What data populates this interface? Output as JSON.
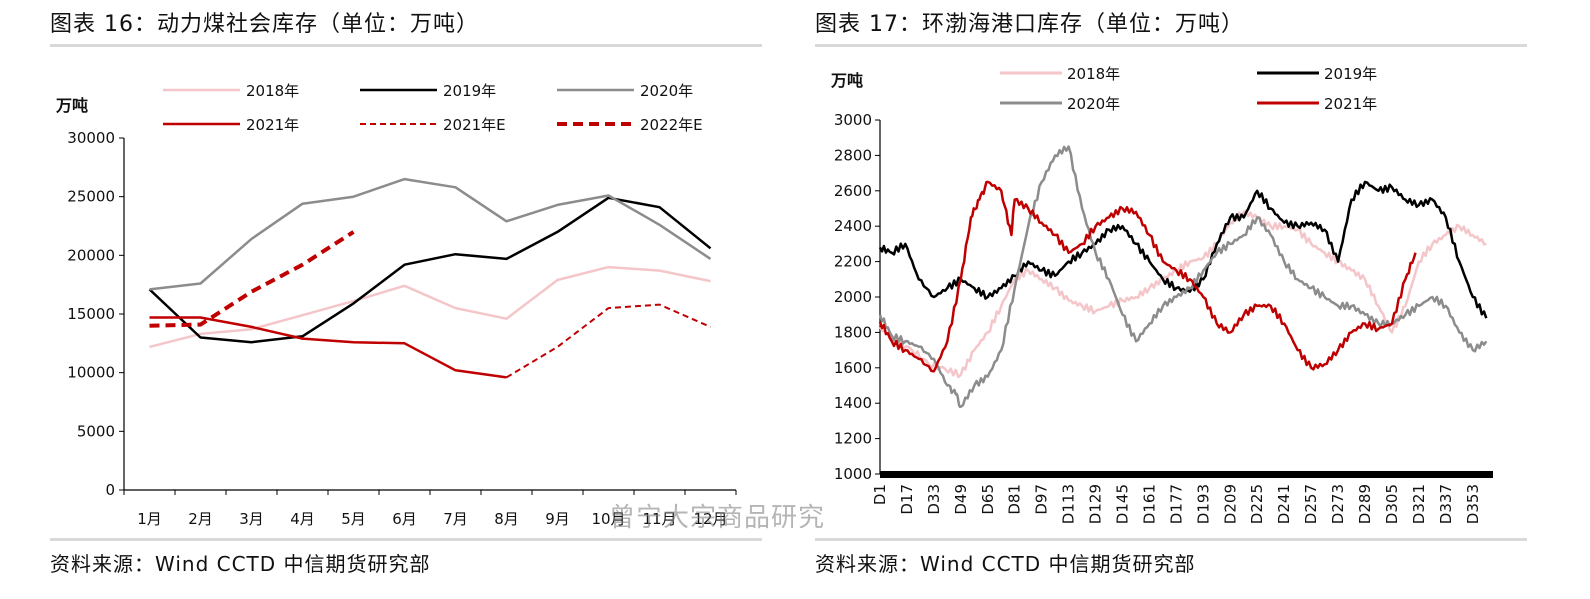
{
  "left": {
    "title": "图表 16：动力煤社会库存（单位：万吨）",
    "source": "资料来源：Wind CCTD 中信期货研究部",
    "chart_data": {
      "type": "line",
      "ylabel": "万吨",
      "ylim": [
        0,
        30000
      ],
      "yticks": [
        0,
        5000,
        10000,
        15000,
        20000,
        25000,
        30000
      ],
      "categories": [
        "1月",
        "2月",
        "3月",
        "4月",
        "5月",
        "6月",
        "7月",
        "8月",
        "9月",
        "10月",
        "11月",
        "12月"
      ],
      "legend_position": "top",
      "series": [
        {
          "name": "2018年",
          "color": "#f4c6c9",
          "style": "solid",
          "width": 2.5,
          "values": [
            12200,
            13300,
            13700,
            14900,
            16100,
            17400,
            15500,
            14600,
            17900,
            19000,
            18700,
            17800
          ]
        },
        {
          "name": "2019年",
          "color": "#000000",
          "style": "solid",
          "width": 2.5,
          "values": [
            17100,
            13000,
            12600,
            13100,
            15900,
            19200,
            20100,
            19700,
            22000,
            24900,
            24100,
            20600
          ]
        },
        {
          "name": "2020年",
          "color": "#8c8c8c",
          "style": "solid",
          "width": 2.5,
          "values": [
            17100,
            17600,
            21400,
            24400,
            25000,
            26500,
            25800,
            22900,
            24300,
            25100,
            22600,
            19700
          ]
        },
        {
          "name": "2021年",
          "color": "#c00000",
          "style": "solid",
          "width": 2.5,
          "values": [
            14700,
            14700,
            13900,
            12900,
            12600,
            12500,
            10200,
            9600,
            null,
            null,
            null,
            null
          ]
        },
        {
          "name": "2021年E",
          "color": "#c00000",
          "style": "dash",
          "width": 2,
          "values": [
            null,
            null,
            null,
            null,
            null,
            null,
            null,
            9600,
            12200,
            15500,
            15800,
            13900
          ]
        },
        {
          "name": "2022年E",
          "color": "#c00000",
          "style": "dashbold",
          "width": 4,
          "values": [
            14000,
            14100,
            16900,
            19200,
            22000,
            null,
            null,
            null,
            null,
            null,
            null,
            null
          ]
        }
      ]
    }
  },
  "right": {
    "title": "图表 17：环渤海港口库存（单位：万吨）",
    "source": "资料来源：Wind CCTD 中信期货研究部",
    "watermark": "曾宁大宗商品研究",
    "chart_data": {
      "type": "line",
      "ylabel": "万吨",
      "ylim": [
        1000,
        3000
      ],
      "yticks": [
        1000,
        1200,
        1400,
        1600,
        1800,
        2000,
        2200,
        2400,
        2600,
        2800,
        3000
      ],
      "x_ticks": [
        "D1",
        "D17",
        "D33",
        "D49",
        "D65",
        "D81",
        "D97",
        "D113",
        "D129",
        "D145",
        "D161",
        "D177",
        "D193",
        "D209",
        "D225",
        "D241",
        "D257",
        "D273",
        "D289",
        "D305",
        "D321",
        "D337",
        "D353"
      ],
      "x_range": [
        1,
        365
      ],
      "legend_position": "top",
      "series": [
        {
          "name": "2018年",
          "color": "#f4c6c9",
          "width": 2.5,
          "points": [
            [
              1,
              1830
            ],
            [
              10,
              1750
            ],
            [
              20,
              1700
            ],
            [
              30,
              1620
            ],
            [
              40,
              1590
            ],
            [
              49,
              1560
            ],
            [
              57,
              1700
            ],
            [
              65,
              1800
            ],
            [
              73,
              1950
            ],
            [
              81,
              2100
            ],
            [
              89,
              2150
            ],
            [
              97,
              2100
            ],
            [
              105,
              2050
            ],
            [
              113,
              1980
            ],
            [
              121,
              1950
            ],
            [
              129,
              1920
            ],
            [
              137,
              1950
            ],
            [
              145,
              1980
            ],
            [
              153,
              2000
            ],
            [
              161,
              2050
            ],
            [
              169,
              2100
            ],
            [
              177,
              2150
            ],
            [
              185,
              2200
            ],
            [
              193,
              2220
            ],
            [
              201,
              2300
            ],
            [
              209,
              2420
            ],
            [
              217,
              2480
            ],
            [
              225,
              2450
            ],
            [
              233,
              2400
            ],
            [
              241,
              2400
            ],
            [
              249,
              2380
            ],
            [
              257,
              2300
            ],
            [
              265,
              2250
            ],
            [
              273,
              2200
            ],
            [
              281,
              2150
            ],
            [
              289,
              2100
            ],
            [
              297,
              1950
            ],
            [
              305,
              1800
            ],
            [
              313,
              1950
            ],
            [
              321,
              2200
            ],
            [
              329,
              2300
            ],
            [
              337,
              2350
            ],
            [
              345,
              2400
            ],
            [
              353,
              2350
            ],
            [
              361,
              2300
            ]
          ]
        },
        {
          "name": "2019年",
          "color": "#000000",
          "width": 2.5,
          "points": [
            [
              1,
              2280
            ],
            [
              8,
              2250
            ],
            [
              16,
              2300
            ],
            [
              24,
              2100
            ],
            [
              33,
              2000
            ],
            [
              41,
              2050
            ],
            [
              49,
              2100
            ],
            [
              57,
              2050
            ],
            [
              65,
              2000
            ],
            [
              73,
              2050
            ],
            [
              81,
              2120
            ],
            [
              89,
              2200
            ],
            [
              97,
              2150
            ],
            [
              105,
              2120
            ],
            [
              113,
              2200
            ],
            [
              121,
              2250
            ],
            [
              129,
              2300
            ],
            [
              137,
              2380
            ],
            [
              145,
              2400
            ],
            [
              153,
              2300
            ],
            [
              161,
              2200
            ],
            [
              169,
              2100
            ],
            [
              177,
              2050
            ],
            [
              185,
              2030
            ],
            [
              193,
              2100
            ],
            [
              201,
              2300
            ],
            [
              209,
              2450
            ],
            [
              217,
              2450
            ],
            [
              225,
              2600
            ],
            [
              233,
              2500
            ],
            [
              241,
              2420
            ],
            [
              249,
              2400
            ],
            [
              257,
              2420
            ],
            [
              265,
              2380
            ],
            [
              273,
              2200
            ],
            [
              281,
              2550
            ],
            [
              289,
              2650
            ],
            [
              297,
              2600
            ],
            [
              305,
              2620
            ],
            [
              313,
              2550
            ],
            [
              321,
              2520
            ],
            [
              329,
              2550
            ],
            [
              337,
              2450
            ],
            [
              345,
              2200
            ],
            [
              353,
              2000
            ],
            [
              361,
              1880
            ]
          ]
        },
        {
          "name": "2020年",
          "color": "#8c8c8c",
          "width": 2.5,
          "points": [
            [
              1,
              1900
            ],
            [
              8,
              1780
            ],
            [
              16,
              1750
            ],
            [
              24,
              1720
            ],
            [
              33,
              1650
            ],
            [
              41,
              1500
            ],
            [
              46,
              1450
            ],
            [
              49,
              1380
            ],
            [
              57,
              1500
            ],
            [
              65,
              1550
            ],
            [
              73,
              1700
            ],
            [
              81,
              2050
            ],
            [
              89,
              2400
            ],
            [
              97,
              2650
            ],
            [
              105,
              2800
            ],
            [
              113,
              2850
            ],
            [
              121,
              2500
            ],
            [
              129,
              2250
            ],
            [
              137,
              2100
            ],
            [
              145,
              1900
            ],
            [
              153,
              1750
            ],
            [
              161,
              1850
            ],
            [
              169,
              1950
            ],
            [
              177,
              2000
            ],
            [
              185,
              2050
            ],
            [
              193,
              2150
            ],
            [
              201,
              2250
            ],
            [
              209,
              2300
            ],
            [
              217,
              2350
            ],
            [
              225,
              2450
            ],
            [
              233,
              2350
            ],
            [
              241,
              2200
            ],
            [
              249,
              2100
            ],
            [
              257,
              2050
            ],
            [
              265,
              2000
            ],
            [
              273,
              1950
            ],
            [
              281,
              1950
            ],
            [
              289,
              1900
            ],
            [
              297,
              1850
            ],
            [
              305,
              1850
            ],
            [
              313,
              1900
            ],
            [
              321,
              1950
            ],
            [
              329,
              2000
            ],
            [
              337,
              1950
            ],
            [
              345,
              1800
            ],
            [
              353,
              1700
            ],
            [
              361,
              1750
            ]
          ]
        },
        {
          "name": "2021年",
          "color": "#c00000",
          "width": 2.5,
          "points": [
            [
              1,
              1860
            ],
            [
              8,
              1750
            ],
            [
              16,
              1700
            ],
            [
              24,
              1650
            ],
            [
              33,
              1580
            ],
            [
              41,
              1750
            ],
            [
              49,
              2100
            ],
            [
              55,
              2450
            ],
            [
              60,
              2550
            ],
            [
              65,
              2650
            ],
            [
              73,
              2600
            ],
            [
              79,
              2350
            ],
            [
              81,
              2550
            ],
            [
              89,
              2500
            ],
            [
              97,
              2420
            ],
            [
              105,
              2350
            ],
            [
              113,
              2250
            ],
            [
              121,
              2300
            ],
            [
              129,
              2400
            ],
            [
              137,
              2450
            ],
            [
              145,
              2500
            ],
            [
              153,
              2480
            ],
            [
              161,
              2350
            ],
            [
              169,
              2200
            ],
            [
              177,
              2150
            ],
            [
              185,
              2100
            ],
            [
              193,
              2000
            ],
            [
              201,
              1850
            ],
            [
              209,
              1800
            ],
            [
              217,
              1900
            ],
            [
              225,
              1950
            ],
            [
              233,
              1950
            ],
            [
              241,
              1850
            ],
            [
              249,
              1700
            ],
            [
              257,
              1600
            ],
            [
              265,
              1620
            ],
            [
              273,
              1700
            ],
            [
              281,
              1800
            ],
            [
              289,
              1850
            ],
            [
              297,
              1820
            ],
            [
              305,
              1850
            ],
            [
              313,
              2100
            ],
            [
              319,
              2250
            ]
          ]
        }
      ]
    }
  }
}
